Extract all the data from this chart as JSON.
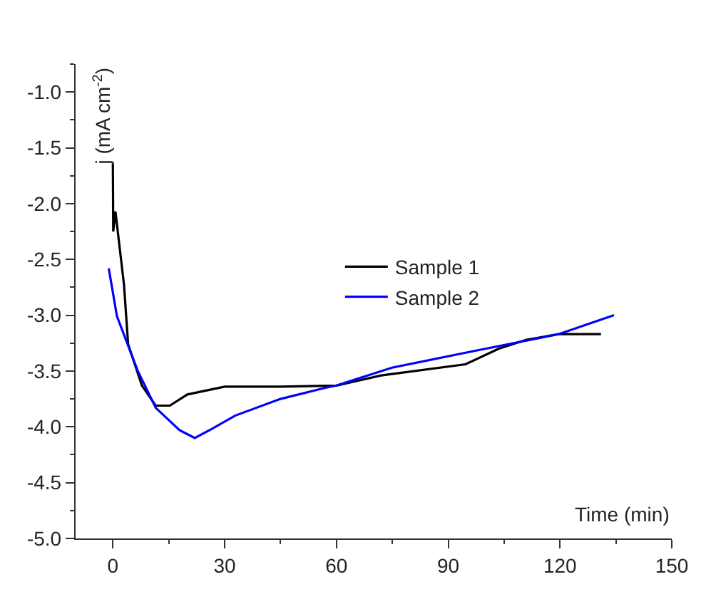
{
  "chart_data": {
    "type": "line",
    "xlabel": "Time (min)",
    "ylabel": "j (mA cm$^{-2}$)",
    "xlim": [
      -10,
      150
    ],
    "xticks": [
      0,
      30,
      60,
      90,
      120,
      150
    ],
    "ylim": [
      -5.0,
      -0.75
    ],
    "yticks": [
      {
        "value": -1.0,
        "label": "-1.0"
      },
      {
        "value": -1.5,
        "label": "-1.5"
      },
      {
        "value": -2.0,
        "label": "-2.0"
      },
      {
        "value": -2.5,
        "label": "-2.5"
      },
      {
        "value": -3.0,
        "label": "-3.0"
      },
      {
        "value": -3.5,
        "label": "-3.5"
      },
      {
        "value": -4.0,
        "label": "-4.0"
      },
      {
        "value": -4.5,
        "label": "-4.5"
      },
      {
        "value": -5.0,
        "label": "-5.0"
      }
    ],
    "legend": "center",
    "marker": "none",
    "line_style": "solid",
    "series": [
      {
        "name": "Sample 1",
        "color": "#000000",
        "x": [
          0.0,
          0.1,
          0.7,
          3,
          4.1,
          7.8,
          11.5,
          15.3,
          20,
          30,
          45,
          60,
          72,
          94.6,
          103.6,
          111,
          119.6,
          131
        ],
        "values": [
          -1.64,
          -2.25,
          -2.07,
          -2.73,
          -3.26,
          -3.63,
          -3.81,
          -3.81,
          -3.71,
          -3.64,
          -3.64,
          -3.63,
          -3.54,
          -3.44,
          -3.3,
          -3.22,
          -3.17,
          -3.17
        ]
      },
      {
        "name": "Sample 2",
        "color": "#0000ff",
        "x": [
          -1.1,
          1.1,
          6.7,
          11.5,
          17.9,
          22,
          26.5,
          32.8,
          45,
          57,
          60,
          74.9,
          97,
          119.6,
          134.5
        ],
        "values": [
          -2.58,
          -3.01,
          -3.5,
          -3.83,
          -4.03,
          -4.1,
          -4.02,
          -3.9,
          -3.75,
          -3.65,
          -3.63,
          -3.47,
          -3.32,
          -3.17,
          -3.0
        ]
      }
    ]
  }
}
